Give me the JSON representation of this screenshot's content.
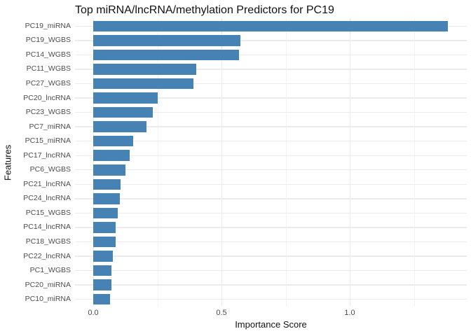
{
  "chart_data": {
    "type": "bar",
    "orientation": "horizontal",
    "title": "Top miRNA/lncRNA/methylation Predictors for PC19",
    "xlabel": "Importance Score",
    "ylabel": "Features",
    "categories": [
      "PC19_miRNA",
      "PC19_WGBS",
      "PC14_WGBS",
      "PC11_WGBS",
      "PC27_WGBS",
      "PC20_lncRNA",
      "PC23_WGBS",
      "PC7_miRNA",
      "PC15_miRNA",
      "PC17_lncRNA",
      "PC6_WGBS",
      "PC21_lncRNA",
      "PC24_lncRNA",
      "PC15_WGBS",
      "PC14_lncRNA",
      "PC18_WGBS",
      "PC22_lncRNA",
      "PC1_WGBS",
      "PC20_miRNA",
      "PC10_miRNA"
    ],
    "values": [
      1.383,
      0.574,
      0.567,
      0.402,
      0.39,
      0.251,
      0.231,
      0.207,
      0.156,
      0.143,
      0.126,
      0.107,
      0.103,
      0.095,
      0.088,
      0.087,
      0.076,
      0.072,
      0.071,
      0.065
    ],
    "xlim": [
      -0.07,
      1.46
    ],
    "x_ticks": [
      "0.0",
      "0.5",
      "1.0"
    ],
    "x_tick_values": [
      0.0,
      0.5,
      1.0
    ],
    "x_minor_tick_values": [
      0.25,
      0.75,
      1.25
    ],
    "bar_color": "#4682B4",
    "grid_major_color": "#e9e9e9",
    "grid_minor_color": "#f3f3f3",
    "background_color": "#ffffff",
    "legend": false,
    "grid": true
  }
}
